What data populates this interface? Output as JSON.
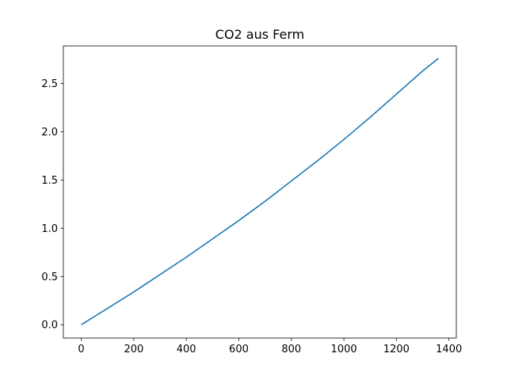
{
  "chart_data": {
    "type": "line",
    "title": "CO2 aus Ferm",
    "xlabel": "",
    "ylabel": "",
    "xlim": [
      -68,
      1428
    ],
    "ylim": [
      -0.1376,
      2.8896
    ],
    "x_ticks": [
      0,
      200,
      400,
      600,
      800,
      1000,
      1200,
      1400
    ],
    "x_tick_labels": [
      "0",
      "200",
      "400",
      "600",
      "800",
      "1000",
      "1200",
      "1400"
    ],
    "y_ticks": [
      0.0,
      0.5,
      1.0,
      1.5,
      2.0,
      2.5
    ],
    "y_tick_labels": [
      "0.0",
      "0.5",
      "1.0",
      "1.5",
      "2.0",
      "2.5"
    ],
    "grid": false,
    "series": [
      {
        "color": "#1f77b4",
        "x": [
          0,
          100,
          200,
          300,
          400,
          500,
          600,
          700,
          800,
          900,
          1000,
          1100,
          1200,
          1300,
          1360
        ],
        "y": [
          0.0,
          0.17,
          0.34,
          0.52,
          0.7,
          0.89,
          1.08,
          1.28,
          1.49,
          1.7,
          1.92,
          2.15,
          2.39,
          2.63,
          2.76
        ]
      }
    ]
  }
}
